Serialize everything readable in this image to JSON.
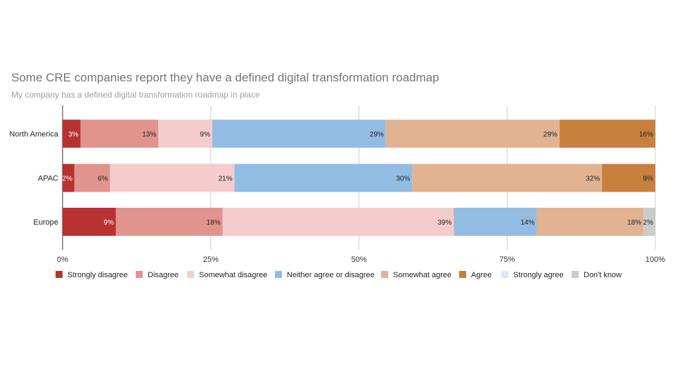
{
  "chart_data": {
    "type": "bar",
    "orientation": "horizontal",
    "stacked": true,
    "title": "Some CRE companies report they have a defined digital transformation roadmap",
    "subtitle": "My company has a defined digital transformation roadmap in place",
    "categories": [
      "North America",
      "APAC",
      "Europe"
    ],
    "xlim": [
      0,
      100
    ],
    "x_ticks": [
      "0%",
      "25%",
      "50%",
      "75%",
      "100%"
    ],
    "grid": true,
    "legend_position": "bottom",
    "series": [
      {
        "name": "Strongly disagree",
        "color": "#b83232",
        "label_color": "#ffffff",
        "values": [
          3,
          2,
          9
        ],
        "labels": [
          "3%",
          "2%",
          "9%"
        ]
      },
      {
        "name": "Disagree",
        "color": "#e0948d",
        "label_color": "#212121",
        "values": [
          13,
          6,
          18
        ],
        "labels": [
          "13%",
          "6%",
          "18%"
        ]
      },
      {
        "name": "Somewhat disagree",
        "color": "#f4cccc",
        "label_color": "#212121",
        "values": [
          9,
          21,
          39
        ],
        "labels": [
          "9%",
          "21%",
          "39%"
        ]
      },
      {
        "name": "Neither agree or disagree",
        "color": "#93bce3",
        "label_color": "#212121",
        "values": [
          29,
          30,
          14
        ],
        "labels": [
          "29%",
          "30%",
          "14%"
        ]
      },
      {
        "name": "Somewhat agree",
        "color": "#e1b392",
        "label_color": "#212121",
        "values": [
          29,
          32,
          18
        ],
        "labels": [
          "29%",
          "32%",
          "18%"
        ]
      },
      {
        "name": "Agree",
        "color": "#c8803e",
        "label_color": "#212121",
        "values": [
          16,
          9,
          0
        ],
        "labels": [
          "16%",
          "9%",
          ""
        ]
      },
      {
        "name": "Strongly agree",
        "color": "#d7e8f7",
        "label_color": "#212121",
        "values": [
          0,
          0,
          0
        ],
        "labels": [
          "",
          "",
          ""
        ]
      },
      {
        "name": "Don't know",
        "color": "#cccccc",
        "label_color": "#212121",
        "values": [
          0,
          0,
          2
        ],
        "labels": [
          "",
          "",
          "2%"
        ]
      }
    ]
  }
}
